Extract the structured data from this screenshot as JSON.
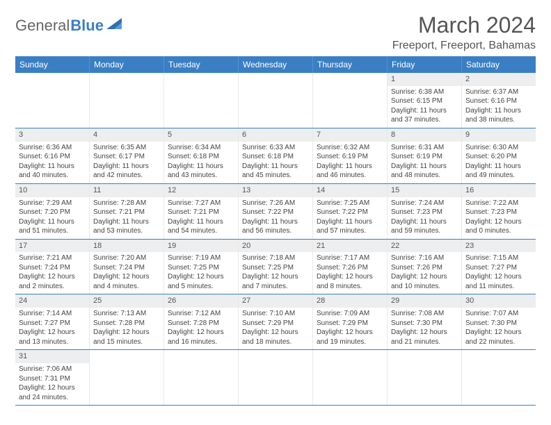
{
  "brand": {
    "part1": "General",
    "part2": "Blue"
  },
  "title": "March 2024",
  "location": "Freeport, Freeport, Bahamas",
  "colors": {
    "header_bg": "#3a7fc4",
    "header_text": "#ffffff",
    "daynum_bg": "#eceef0",
    "week_divider": "#3a7fc4",
    "text": "#444444"
  },
  "weekdays": [
    "Sunday",
    "Monday",
    "Tuesday",
    "Wednesday",
    "Thursday",
    "Friday",
    "Saturday"
  ],
  "weeks": [
    [
      {
        "n": "",
        "sr": "",
        "ss": "",
        "dl": ""
      },
      {
        "n": "",
        "sr": "",
        "ss": "",
        "dl": ""
      },
      {
        "n": "",
        "sr": "",
        "ss": "",
        "dl": ""
      },
      {
        "n": "",
        "sr": "",
        "ss": "",
        "dl": ""
      },
      {
        "n": "",
        "sr": "",
        "ss": "",
        "dl": ""
      },
      {
        "n": "1",
        "sr": "Sunrise: 6:38 AM",
        "ss": "Sunset: 6:15 PM",
        "dl": "Daylight: 11 hours and 37 minutes."
      },
      {
        "n": "2",
        "sr": "Sunrise: 6:37 AM",
        "ss": "Sunset: 6:16 PM",
        "dl": "Daylight: 11 hours and 38 minutes."
      }
    ],
    [
      {
        "n": "3",
        "sr": "Sunrise: 6:36 AM",
        "ss": "Sunset: 6:16 PM",
        "dl": "Daylight: 11 hours and 40 minutes."
      },
      {
        "n": "4",
        "sr": "Sunrise: 6:35 AM",
        "ss": "Sunset: 6:17 PM",
        "dl": "Daylight: 11 hours and 42 minutes."
      },
      {
        "n": "5",
        "sr": "Sunrise: 6:34 AM",
        "ss": "Sunset: 6:18 PM",
        "dl": "Daylight: 11 hours and 43 minutes."
      },
      {
        "n": "6",
        "sr": "Sunrise: 6:33 AM",
        "ss": "Sunset: 6:18 PM",
        "dl": "Daylight: 11 hours and 45 minutes."
      },
      {
        "n": "7",
        "sr": "Sunrise: 6:32 AM",
        "ss": "Sunset: 6:19 PM",
        "dl": "Daylight: 11 hours and 46 minutes."
      },
      {
        "n": "8",
        "sr": "Sunrise: 6:31 AM",
        "ss": "Sunset: 6:19 PM",
        "dl": "Daylight: 11 hours and 48 minutes."
      },
      {
        "n": "9",
        "sr": "Sunrise: 6:30 AM",
        "ss": "Sunset: 6:20 PM",
        "dl": "Daylight: 11 hours and 49 minutes."
      }
    ],
    [
      {
        "n": "10",
        "sr": "Sunrise: 7:29 AM",
        "ss": "Sunset: 7:20 PM",
        "dl": "Daylight: 11 hours and 51 minutes."
      },
      {
        "n": "11",
        "sr": "Sunrise: 7:28 AM",
        "ss": "Sunset: 7:21 PM",
        "dl": "Daylight: 11 hours and 53 minutes."
      },
      {
        "n": "12",
        "sr": "Sunrise: 7:27 AM",
        "ss": "Sunset: 7:21 PM",
        "dl": "Daylight: 11 hours and 54 minutes."
      },
      {
        "n": "13",
        "sr": "Sunrise: 7:26 AM",
        "ss": "Sunset: 7:22 PM",
        "dl": "Daylight: 11 hours and 56 minutes."
      },
      {
        "n": "14",
        "sr": "Sunrise: 7:25 AM",
        "ss": "Sunset: 7:22 PM",
        "dl": "Daylight: 11 hours and 57 minutes."
      },
      {
        "n": "15",
        "sr": "Sunrise: 7:24 AM",
        "ss": "Sunset: 7:23 PM",
        "dl": "Daylight: 11 hours and 59 minutes."
      },
      {
        "n": "16",
        "sr": "Sunrise: 7:22 AM",
        "ss": "Sunset: 7:23 PM",
        "dl": "Daylight: 12 hours and 0 minutes."
      }
    ],
    [
      {
        "n": "17",
        "sr": "Sunrise: 7:21 AM",
        "ss": "Sunset: 7:24 PM",
        "dl": "Daylight: 12 hours and 2 minutes."
      },
      {
        "n": "18",
        "sr": "Sunrise: 7:20 AM",
        "ss": "Sunset: 7:24 PM",
        "dl": "Daylight: 12 hours and 4 minutes."
      },
      {
        "n": "19",
        "sr": "Sunrise: 7:19 AM",
        "ss": "Sunset: 7:25 PM",
        "dl": "Daylight: 12 hours and 5 minutes."
      },
      {
        "n": "20",
        "sr": "Sunrise: 7:18 AM",
        "ss": "Sunset: 7:25 PM",
        "dl": "Daylight: 12 hours and 7 minutes."
      },
      {
        "n": "21",
        "sr": "Sunrise: 7:17 AM",
        "ss": "Sunset: 7:26 PM",
        "dl": "Daylight: 12 hours and 8 minutes."
      },
      {
        "n": "22",
        "sr": "Sunrise: 7:16 AM",
        "ss": "Sunset: 7:26 PM",
        "dl": "Daylight: 12 hours and 10 minutes."
      },
      {
        "n": "23",
        "sr": "Sunrise: 7:15 AM",
        "ss": "Sunset: 7:27 PM",
        "dl": "Daylight: 12 hours and 11 minutes."
      }
    ],
    [
      {
        "n": "24",
        "sr": "Sunrise: 7:14 AM",
        "ss": "Sunset: 7:27 PM",
        "dl": "Daylight: 12 hours and 13 minutes."
      },
      {
        "n": "25",
        "sr": "Sunrise: 7:13 AM",
        "ss": "Sunset: 7:28 PM",
        "dl": "Daylight: 12 hours and 15 minutes."
      },
      {
        "n": "26",
        "sr": "Sunrise: 7:12 AM",
        "ss": "Sunset: 7:28 PM",
        "dl": "Daylight: 12 hours and 16 minutes."
      },
      {
        "n": "27",
        "sr": "Sunrise: 7:10 AM",
        "ss": "Sunset: 7:29 PM",
        "dl": "Daylight: 12 hours and 18 minutes."
      },
      {
        "n": "28",
        "sr": "Sunrise: 7:09 AM",
        "ss": "Sunset: 7:29 PM",
        "dl": "Daylight: 12 hours and 19 minutes."
      },
      {
        "n": "29",
        "sr": "Sunrise: 7:08 AM",
        "ss": "Sunset: 7:30 PM",
        "dl": "Daylight: 12 hours and 21 minutes."
      },
      {
        "n": "30",
        "sr": "Sunrise: 7:07 AM",
        "ss": "Sunset: 7:30 PM",
        "dl": "Daylight: 12 hours and 22 minutes."
      }
    ],
    [
      {
        "n": "31",
        "sr": "Sunrise: 7:06 AM",
        "ss": "Sunset: 7:31 PM",
        "dl": "Daylight: 12 hours and 24 minutes."
      },
      {
        "n": "",
        "sr": "",
        "ss": "",
        "dl": ""
      },
      {
        "n": "",
        "sr": "",
        "ss": "",
        "dl": ""
      },
      {
        "n": "",
        "sr": "",
        "ss": "",
        "dl": ""
      },
      {
        "n": "",
        "sr": "",
        "ss": "",
        "dl": ""
      },
      {
        "n": "",
        "sr": "",
        "ss": "",
        "dl": ""
      },
      {
        "n": "",
        "sr": "",
        "ss": "",
        "dl": ""
      }
    ]
  ]
}
